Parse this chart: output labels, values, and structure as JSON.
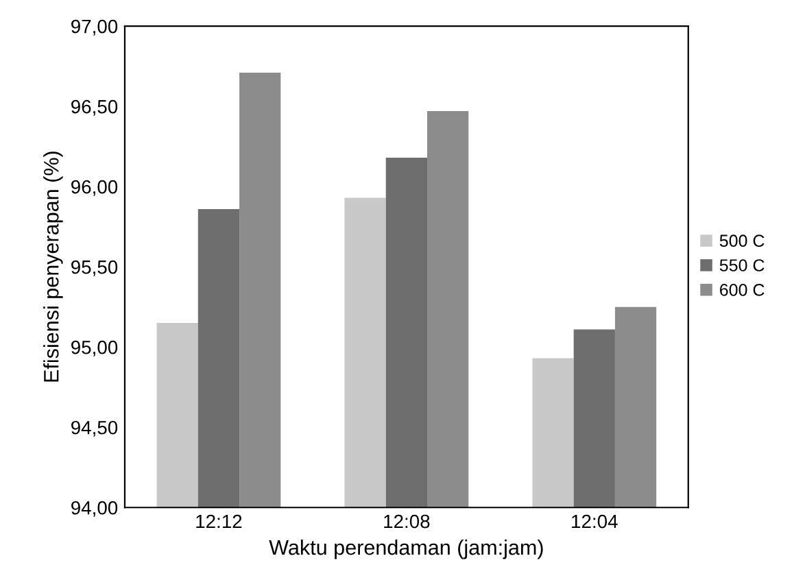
{
  "chart_data": {
    "type": "bar",
    "xlabel": "Waktu perendaman (jam:jam)",
    "ylabel": "Efisiensi penyerapan (%)",
    "categories": [
      "12:12",
      "12:08",
      "12:04"
    ],
    "series": [
      {
        "name": "500 C",
        "color": "#c8c8c8",
        "values": [
          95.15,
          95.93,
          94.93
        ]
      },
      {
        "name": "550 C",
        "color": "#6e6e6e",
        "values": [
          95.86,
          96.18,
          95.11
        ]
      },
      {
        "name": "600 C",
        "color": "#8c8c8c",
        "values": [
          96.71,
          96.47,
          95.25
        ]
      }
    ],
    "ylim": [
      94,
      97
    ],
    "yticks": [
      {
        "value": 94,
        "label": "94,00"
      },
      {
        "value": 94.5,
        "label": "94,50"
      },
      {
        "value": 95,
        "label": "95,00"
      },
      {
        "value": 95.5,
        "label": "95,50"
      },
      {
        "value": 96,
        "label": "96,00"
      },
      {
        "value": 96.5,
        "label": "96,50"
      },
      {
        "value": 97,
        "label": "97,00"
      }
    ],
    "grid": false,
    "legend": "right"
  }
}
